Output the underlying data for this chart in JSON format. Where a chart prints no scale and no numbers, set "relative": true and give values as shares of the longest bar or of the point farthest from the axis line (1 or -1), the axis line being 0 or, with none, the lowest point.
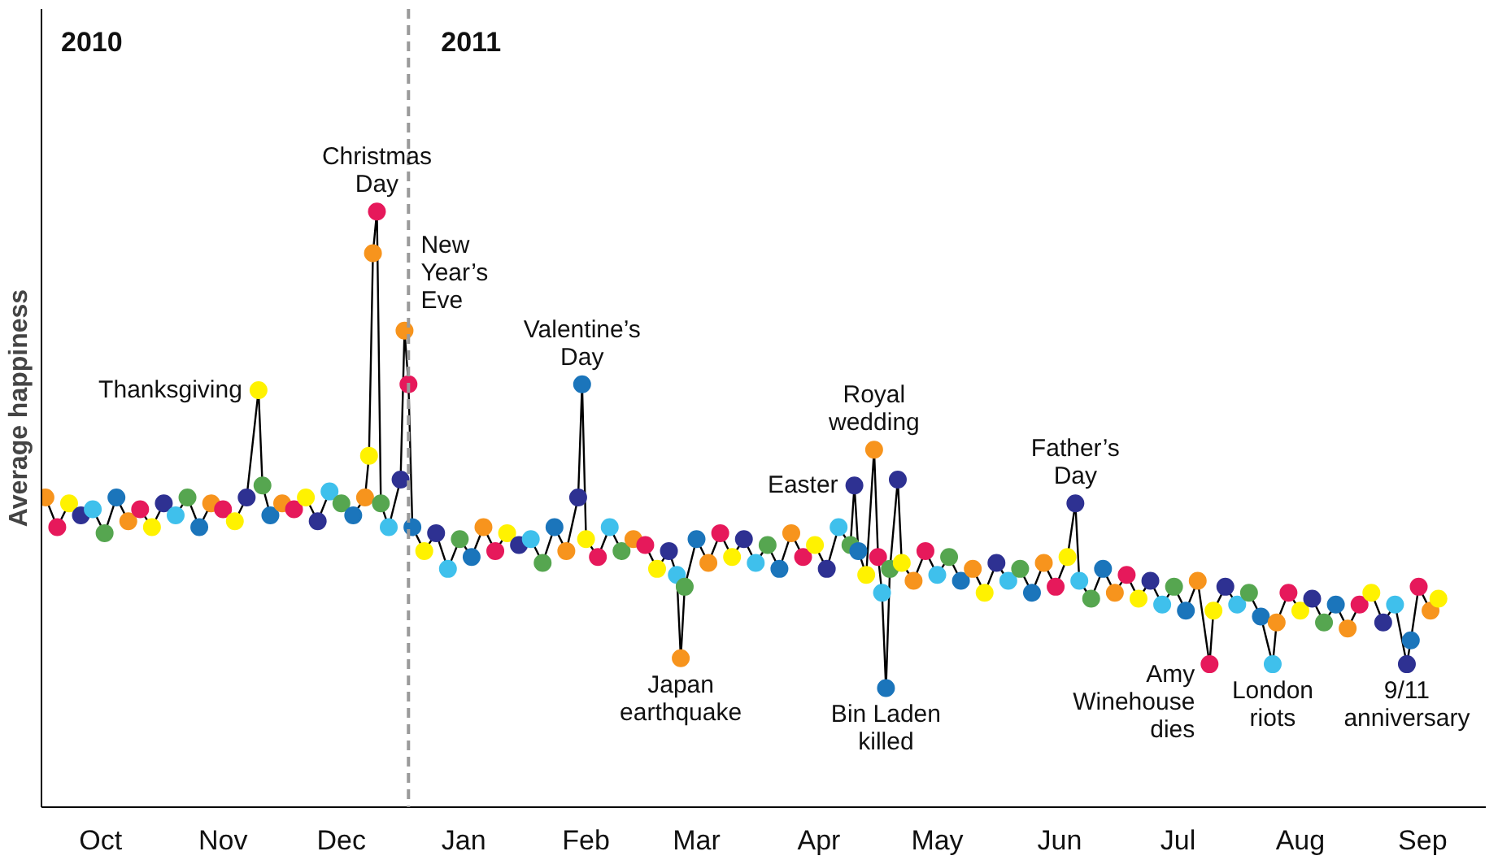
{
  "chart_data": {
    "type": "line",
    "ylabel": "Average happiness",
    "relative": true,
    "grid": false,
    "tick_labels": "x",
    "marker": "circle",
    "line_style": "solid",
    "xlim": [
      "2010-09-30",
      "2011-10-01"
    ],
    "xticks": [
      {
        "value": "2010-10-15",
        "label": "Oct"
      },
      {
        "value": "2010-11-15",
        "label": "Nov"
      },
      {
        "value": "2010-12-15",
        "label": "Dec"
      },
      {
        "value": "2011-01-15",
        "label": "Jan"
      },
      {
        "value": "2011-02-15",
        "label": "Feb"
      },
      {
        "value": "2011-03-15",
        "label": "Mar"
      },
      {
        "value": "2011-04-15",
        "label": "Apr"
      },
      {
        "value": "2011-05-15",
        "label": "May"
      },
      {
        "value": "2011-06-15",
        "label": "Jun"
      },
      {
        "value": "2011-07-15",
        "label": "Jul"
      },
      {
        "value": "2011-08-15",
        "label": "Aug"
      },
      {
        "value": "2011-09-15",
        "label": "Sep"
      }
    ],
    "ref_lines": [
      {
        "axis": "x",
        "value": "2011-01-01",
        "label": "2011",
        "color": "#9a9a9a",
        "line_style": "dashed"
      }
    ],
    "annotations": [
      "2010",
      {
        "text": "Thanksgiving",
        "x": "2010-11-24",
        "y": 0.7
      },
      {
        "text": "Christmas\nDay",
        "x": "2010-12-24",
        "y": 1.0
      },
      {
        "text": "New\nYear’s\nEve",
        "x": "2010-12-31",
        "y": 0.8
      },
      {
        "text": "Valentine’s\nDay",
        "x": "2011-02-14",
        "y": 0.71
      },
      {
        "text": "Japan\nearthquake",
        "x": "2011-03-11",
        "y": 0.25
      },
      {
        "text": "Easter",
        "x": "2011-04-24",
        "y": 0.54
      },
      {
        "text": "Royal\nwedding",
        "x": "2011-04-29",
        "y": 0.6
      },
      {
        "text": "Bin Laden\nkilled",
        "x": "2011-05-02",
        "y": 0.2
      },
      {
        "text": "Father’s\nDay",
        "x": "2011-06-19",
        "y": 0.51
      },
      {
        "text": "Amy\nWinehouse\ndies",
        "x": "2011-07-23",
        "y": 0.24
      },
      {
        "text": "London\nriots",
        "x": "2011-08-08",
        "y": 0.24
      },
      {
        "text": "9/11\nanniversary",
        "x": "2011-09-11",
        "y": 0.24
      }
    ],
    "series": [
      {
        "color": "#000000",
        "x": [
          "2010-10-01",
          "2010-10-04",
          "2010-10-07",
          "2010-10-10",
          "2010-10-13",
          "2010-10-16",
          "2010-10-19",
          "2010-10-22",
          "2010-10-25",
          "2010-10-28",
          "2010-10-31",
          "2010-11-03",
          "2010-11-06",
          "2010-11-09",
          "2010-11-12",
          "2010-11-15",
          "2010-11-18",
          "2010-11-21",
          "2010-11-24",
          "2010-11-25",
          "2010-11-27",
          "2010-11-30",
          "2010-12-03",
          "2010-12-06",
          "2010-12-09",
          "2010-12-12",
          "2010-12-15",
          "2010-12-18",
          "2010-12-21",
          "2010-12-22",
          "2010-12-23",
          "2010-12-24",
          "2010-12-25",
          "2010-12-27",
          "2010-12-30",
          "2010-12-31",
          "2011-01-01",
          "2011-01-02",
          "2011-01-05",
          "2011-01-08",
          "2011-01-11",
          "2011-01-14",
          "2011-01-17",
          "2011-01-20",
          "2011-01-23",
          "2011-01-26",
          "2011-01-29",
          "2011-02-01",
          "2011-02-04",
          "2011-02-07",
          "2011-02-10",
          "2011-02-13",
          "2011-02-14",
          "2011-02-15",
          "2011-02-18",
          "2011-02-21",
          "2011-02-24",
          "2011-02-27",
          "2011-03-02",
          "2011-03-05",
          "2011-03-08",
          "2011-03-10",
          "2011-03-11",
          "2011-03-12",
          "2011-03-15",
          "2011-03-18",
          "2011-03-21",
          "2011-03-24",
          "2011-03-27",
          "2011-03-30",
          "2011-04-02",
          "2011-04-05",
          "2011-04-08",
          "2011-04-11",
          "2011-04-14",
          "2011-04-17",
          "2011-04-20",
          "2011-04-23",
          "2011-04-24",
          "2011-04-25",
          "2011-04-27",
          "2011-04-29",
          "2011-04-30",
          "2011-05-01",
          "2011-05-02",
          "2011-05-03",
          "2011-05-05",
          "2011-05-06",
          "2011-05-09",
          "2011-05-12",
          "2011-05-15",
          "2011-05-18",
          "2011-05-21",
          "2011-05-24",
          "2011-05-27",
          "2011-05-30",
          "2011-06-02",
          "2011-06-05",
          "2011-06-08",
          "2011-06-11",
          "2011-06-14",
          "2011-06-17",
          "2011-06-19",
          "2011-06-20",
          "2011-06-23",
          "2011-06-26",
          "2011-06-29",
          "2011-07-02",
          "2011-07-05",
          "2011-07-08",
          "2011-07-11",
          "2011-07-14",
          "2011-07-17",
          "2011-07-20",
          "2011-07-23",
          "2011-07-24",
          "2011-07-27",
          "2011-07-30",
          "2011-08-02",
          "2011-08-05",
          "2011-08-08",
          "2011-08-09",
          "2011-08-12",
          "2011-08-15",
          "2011-08-18",
          "2011-08-21",
          "2011-08-24",
          "2011-08-27",
          "2011-08-30",
          "2011-09-02",
          "2011-09-05",
          "2011-09-08",
          "2011-09-11",
          "2011-09-12",
          "2011-09-14",
          "2011-09-17",
          "2011-09-19"
        ],
        "values": [
          0.52,
          0.47,
          0.51,
          0.49,
          0.5,
          0.46,
          0.52,
          0.48,
          0.5,
          0.47,
          0.51,
          0.49,
          0.52,
          0.47,
          0.51,
          0.5,
          0.48,
          0.52,
          0.7,
          0.54,
          0.49,
          0.51,
          0.5,
          0.52,
          0.48,
          0.53,
          0.51,
          0.49,
          0.52,
          0.59,
          0.93,
          1.0,
          0.51,
          0.47,
          0.55,
          0.8,
          0.71,
          0.47,
          0.43,
          0.46,
          0.4,
          0.45,
          0.42,
          0.47,
          0.43,
          0.46,
          0.44,
          0.45,
          0.41,
          0.47,
          0.43,
          0.52,
          0.71,
          0.45,
          0.42,
          0.47,
          0.43,
          0.45,
          0.44,
          0.4,
          0.43,
          0.39,
          0.25,
          0.37,
          0.45,
          0.41,
          0.46,
          0.42,
          0.45,
          0.41,
          0.44,
          0.4,
          0.46,
          0.42,
          0.44,
          0.4,
          0.47,
          0.44,
          0.54,
          0.43,
          0.39,
          0.6,
          0.42,
          0.36,
          0.2,
          0.4,
          0.55,
          0.41,
          0.38,
          0.43,
          0.39,
          0.42,
          0.38,
          0.4,
          0.36,
          0.41,
          0.38,
          0.4,
          0.36,
          0.41,
          0.37,
          0.42,
          0.51,
          0.38,
          0.35,
          0.4,
          0.36,
          0.39,
          0.35,
          0.38,
          0.34,
          0.37,
          0.33,
          0.38,
          0.24,
          0.33,
          0.37,
          0.34,
          0.36,
          0.32,
          0.24,
          0.31,
          0.36,
          0.33,
          0.35,
          0.31,
          0.34,
          0.3,
          0.34,
          0.36,
          0.31,
          0.34,
          0.24,
          0.28,
          0.37,
          0.33,
          0.35
        ],
        "colors": [
          "#f7941d",
          "#e6195b",
          "#fff200",
          "#2e3192",
          "#3fc0ec",
          "#56a650",
          "#1b75bb",
          "#f7941d",
          "#e6195b",
          "#fff200",
          "#2e3192",
          "#3fc0ec",
          "#56a650",
          "#1b75bb",
          "#f7941d",
          "#e6195b",
          "#fff200",
          "#2e3192",
          "#fff200",
          "#56a650",
          "#1b75bb",
          "#f7941d",
          "#e6195b",
          "#fff200",
          "#2e3192",
          "#3fc0ec",
          "#56a650",
          "#1b75bb",
          "#f7941d",
          "#fff200",
          "#f7941d",
          "#e6195b",
          "#56a650",
          "#3fc0ec",
          "#2e3192",
          "#f7941d",
          "#e6195b",
          "#1b75bb",
          "#fff200",
          "#2e3192",
          "#3fc0ec",
          "#56a650",
          "#1b75bb",
          "#f7941d",
          "#e6195b",
          "#fff200",
          "#2e3192",
          "#3fc0ec",
          "#56a650",
          "#1b75bb",
          "#f7941d",
          "#2e3192",
          "#1b75bb",
          "#fff200",
          "#e6195b",
          "#3fc0ec",
          "#56a650",
          "#f7941d",
          "#e6195b",
          "#fff200",
          "#2e3192",
          "#3fc0ec",
          "#f7941d",
          "#56a650",
          "#1b75bb",
          "#f7941d",
          "#e6195b",
          "#fff200",
          "#2e3192",
          "#3fc0ec",
          "#56a650",
          "#1b75bb",
          "#f7941d",
          "#e6195b",
          "#fff200",
          "#2e3192",
          "#3fc0ec",
          "#56a650",
          "#2e3192",
          "#1b75bb",
          "#fff200",
          "#f7941d",
          "#e6195b",
          "#3fc0ec",
          "#1b75bb",
          "#56a650",
          "#2e3192",
          "#fff200",
          "#f7941d",
          "#e6195b",
          "#3fc0ec",
          "#56a650",
          "#1b75bb",
          "#f7941d",
          "#fff200",
          "#2e3192",
          "#3fc0ec",
          "#56a650",
          "#1b75bb",
          "#f7941d",
          "#e6195b",
          "#fff200",
          "#2e3192",
          "#3fc0ec",
          "#56a650",
          "#1b75bb",
          "#f7941d",
          "#e6195b",
          "#fff200",
          "#2e3192",
          "#3fc0ec",
          "#56a650",
          "#1b75bb",
          "#f7941d",
          "#e6195b",
          "#fff200",
          "#2e3192",
          "#3fc0ec",
          "#56a650",
          "#1b75bb",
          "#3fc0ec",
          "#f7941d",
          "#e6195b",
          "#fff200",
          "#2e3192",
          "#56a650",
          "#1b75bb",
          "#f7941d",
          "#e6195b",
          "#fff200",
          "#2e3192",
          "#3fc0ec",
          "#2e3192",
          "#1b75bb",
          "#e6195b",
          "#f7941d",
          "#fff200"
        ]
      }
    ]
  }
}
